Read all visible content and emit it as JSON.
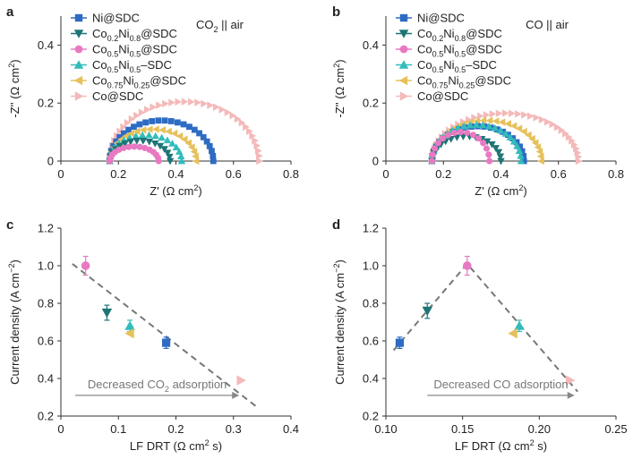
{
  "figure": {
    "series": [
      {
        "key": "ni",
        "label": "Ni@SDC",
        "color": "#2e6bc4",
        "marker": "square"
      },
      {
        "key": "co02",
        "label": "Co0.2Ni0.8@SDC",
        "color": "#1e7577",
        "marker": "tri-down"
      },
      {
        "key": "co05",
        "label": "Co0.5Ni0.5@SDC",
        "color": "#e879c2",
        "marker": "circle"
      },
      {
        "key": "co05dash",
        "label": "Co0.5Ni0.5–SDC",
        "color": "#33bcbc",
        "marker": "tri-up"
      },
      {
        "key": "co075",
        "label": "Co0.75Ni0.25@SDC",
        "color": "#e6c15a",
        "marker": "tri-left"
      },
      {
        "key": "co",
        "label": "Co@SDC",
        "color": "#f4b9b9",
        "marker": "tri-right"
      }
    ]
  },
  "chart_data": [
    {
      "panel": "a",
      "type": "scatter",
      "corner_label": "CO2 || air",
      "xlabel": "Z' (Ω cm2)",
      "ylabel": "-Z'' (Ω cm2)",
      "xlim": [
        0,
        0.8
      ],
      "ylim": [
        0,
        0.5
      ],
      "xticks": [
        "0",
        "0.2",
        "0.4",
        "0.6",
        "0.8"
      ],
      "yticks": [
        "0",
        "0.2",
        "0.4"
      ],
      "arcs": [
        {
          "series": "ni",
          "start": 0.17,
          "end": 0.53,
          "peak": 0.14
        },
        {
          "series": "co02",
          "start": 0.17,
          "end": 0.38,
          "peak": 0.07
        },
        {
          "series": "co05",
          "start": 0.17,
          "end": 0.34,
          "peak": 0.05
        },
        {
          "series": "co05dash",
          "start": 0.17,
          "end": 0.42,
          "peak": 0.09
        },
        {
          "series": "co075",
          "start": 0.17,
          "end": 0.47,
          "peak": 0.11
        },
        {
          "series": "co",
          "start": 0.17,
          "end": 0.69,
          "peak": 0.205
        }
      ]
    },
    {
      "panel": "b",
      "type": "scatter",
      "corner_label": "CO || air",
      "xlabel": "Z' (Ω cm2)",
      "ylabel": "-Z'' (Ω cm2)",
      "xlim": [
        0,
        0.8
      ],
      "ylim": [
        0,
        0.5
      ],
      "xticks": [
        "0",
        "0.2",
        "0.4",
        "0.6",
        "0.8"
      ],
      "yticks": [
        "0",
        "0.2",
        "0.4"
      ],
      "arcs": [
        {
          "series": "ni",
          "start": 0.16,
          "end": 0.48,
          "peak": 0.12
        },
        {
          "series": "co02",
          "start": 0.16,
          "end": 0.4,
          "peak": 0.085
        },
        {
          "series": "co05",
          "start": 0.16,
          "end": 0.36,
          "peak": 0.1
        },
        {
          "series": "co05dash",
          "start": 0.16,
          "end": 0.47,
          "peak": 0.125
        },
        {
          "series": "co075",
          "start": 0.16,
          "end": 0.54,
          "peak": 0.14
        },
        {
          "series": "co",
          "start": 0.16,
          "end": 0.67,
          "peak": 0.165
        }
      ]
    },
    {
      "panel": "c",
      "type": "scatter",
      "xlabel": "LF DRT (Ω cm2 s)",
      "ylabel": "Current density (A cm−2)",
      "xlim": [
        0,
        0.4
      ],
      "ylim": [
        0.2,
        1.2
      ],
      "xticks": [
        "0",
        "0.1",
        "0.2",
        "0.3",
        "0.4"
      ],
      "yticks": [
        "0.2",
        "0.4",
        "0.6",
        "0.8",
        "1.0",
        "1.2"
      ],
      "points": [
        {
          "series": "co05",
          "x": 0.043,
          "y": 1.0,
          "err": 0.05
        },
        {
          "series": "co02",
          "x": 0.08,
          "y": 0.75,
          "err": 0.04
        },
        {
          "series": "co05dash",
          "x": 0.12,
          "y": 0.68,
          "err": 0.03
        },
        {
          "series": "co075",
          "x": 0.12,
          "y": 0.64,
          "err": 0.0
        },
        {
          "series": "ni",
          "x": 0.183,
          "y": 0.59,
          "err": 0.03
        },
        {
          "series": "co",
          "x": 0.313,
          "y": 0.39,
          "err": 0.0
        }
      ],
      "trend": [
        {
          "x": 0.02,
          "y": 1.01
        },
        {
          "x": 0.34,
          "y": 0.25
        }
      ],
      "annotation": "Decreased CO2 adsorption",
      "arrow": {
        "x1": 0.025,
        "x2": 0.31,
        "y": 0.31
      }
    },
    {
      "panel": "d",
      "type": "scatter",
      "xlabel": "LF DRT (Ω cm2 s)",
      "ylabel": "Current density (A cm−2)",
      "xlim": [
        0.1,
        0.25
      ],
      "ylim": [
        0.2,
        1.2
      ],
      "xticks": [
        "0.10",
        "0.15",
        "0.20",
        "0.25"
      ],
      "yticks": [
        "0.2",
        "0.4",
        "0.6",
        "0.8",
        "1.0",
        "1.2"
      ],
      "points": [
        {
          "series": "ni",
          "x": 0.109,
          "y": 0.59,
          "err": 0.03
        },
        {
          "series": "co02",
          "x": 0.127,
          "y": 0.76,
          "err": 0.04
        },
        {
          "series": "co05",
          "x": 0.153,
          "y": 1.0,
          "err": 0.05
        },
        {
          "series": "co05dash",
          "x": 0.187,
          "y": 0.68,
          "err": 0.03
        },
        {
          "series": "co075",
          "x": 0.183,
          "y": 0.64,
          "err": 0.0
        },
        {
          "series": "co",
          "x": 0.22,
          "y": 0.39,
          "err": 0.0
        }
      ],
      "trend": [
        {
          "x": 0.105,
          "y": 0.55
        },
        {
          "x": 0.153,
          "y": 1.01
        },
        {
          "x": 0.225,
          "y": 0.33
        }
      ],
      "annotation": "Decreased CO adsorption",
      "arrow": {
        "x1": 0.127,
        "x2": 0.223,
        "y": 0.31
      }
    }
  ]
}
